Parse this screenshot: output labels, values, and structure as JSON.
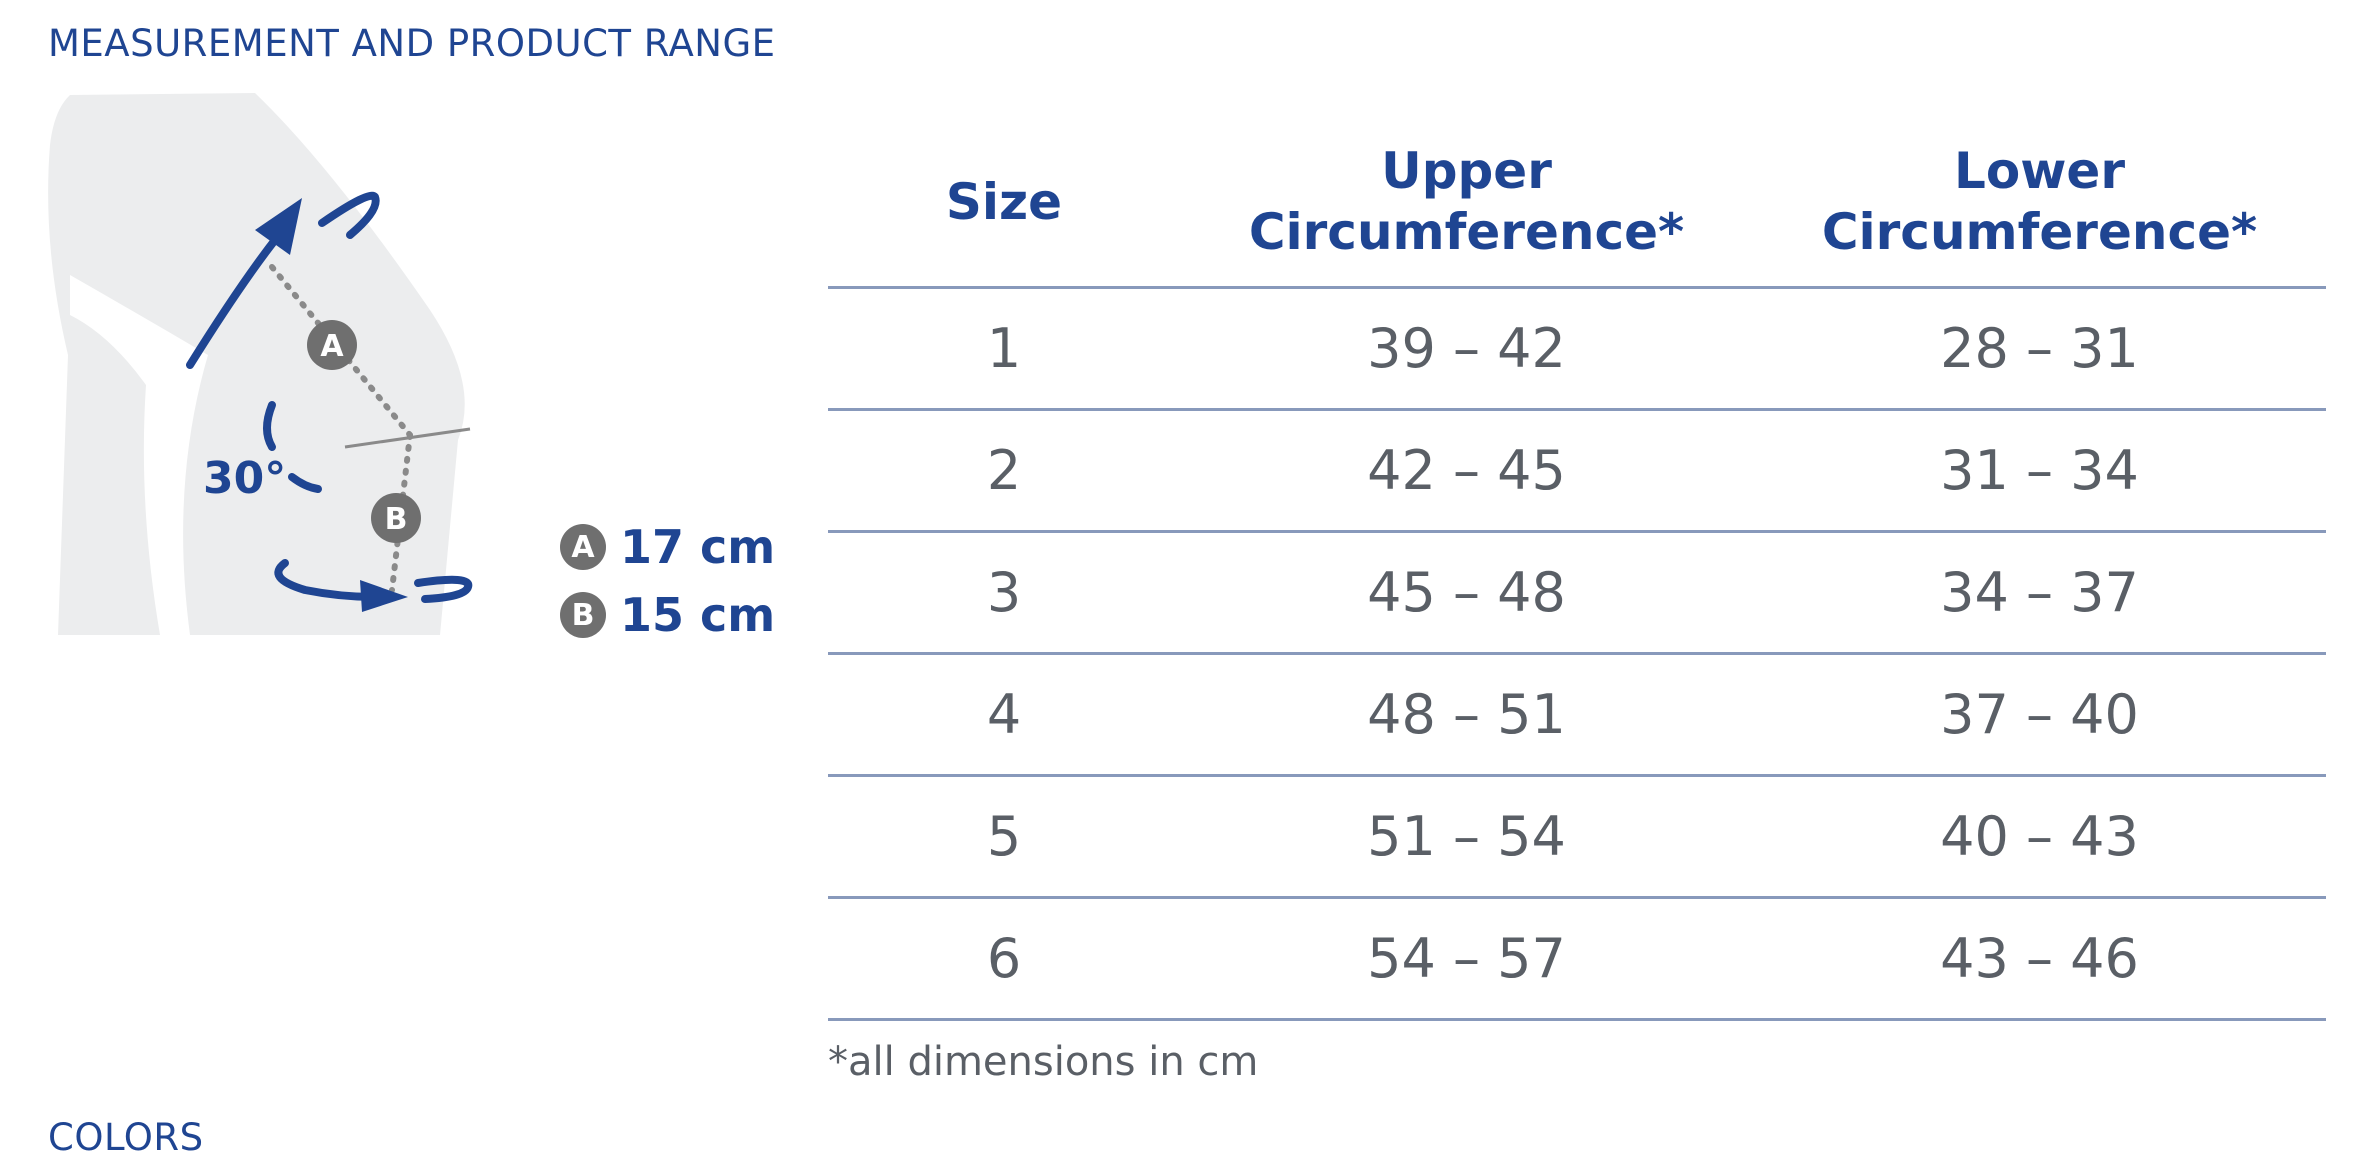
{
  "headings": {
    "measurement": "MEASUREMENT AND PRODUCT RANGE",
    "colors": "COLORS"
  },
  "figure": {
    "angle_label": "30°",
    "marker_a": "A",
    "marker_b": "B"
  },
  "legend": [
    {
      "badge": "A",
      "value": "17 cm"
    },
    {
      "badge": "B",
      "value": "15 cm"
    }
  ],
  "table": {
    "headers": {
      "size": "Size",
      "upper_line1": "Upper",
      "upper_line2": "Circumference*",
      "lower_line1": "Lower",
      "lower_line2": "Circumference*"
    },
    "rows": [
      {
        "size": "1",
        "upper": "39 – 42",
        "lower": "28 – 31"
      },
      {
        "size": "2",
        "upper": "42 – 45",
        "lower": "31 – 34"
      },
      {
        "size": "3",
        "upper": "45 – 48",
        "lower": "34 – 37"
      },
      {
        "size": "4",
        "upper": "48 – 51",
        "lower": "37 – 40"
      },
      {
        "size": "5",
        "upper": "51 – 54",
        "lower": "40 – 43"
      },
      {
        "size": "6",
        "upper": "54 – 57",
        "lower": "43 – 46"
      }
    ],
    "footnote": "*all dimensions in cm"
  },
  "colors_theme": {
    "brand_blue": "#1f4592",
    "badge_gray": "#6f6f6f",
    "leg_gray": "#ecedee",
    "rule_color": "#8899bb",
    "value_text": "#5a5f66"
  }
}
